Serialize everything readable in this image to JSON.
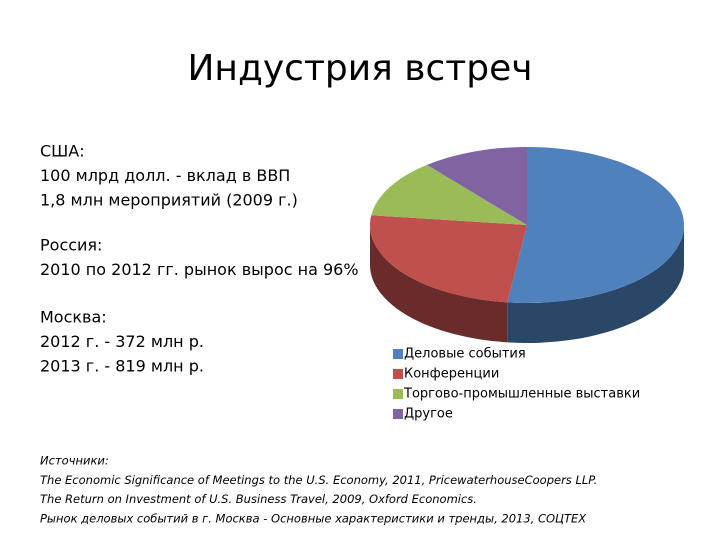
{
  "title": "Индустрия встреч",
  "blocks": [
    [
      "США:",
      "100 млрд долл. - вклад в ВВП",
      "1,8 млн мероприятий (2009 г.)"
    ],
    [
      "Россия:",
      "2010 по 2012 гг. рынок вырос на 96%"
    ],
    [
      "Москва:",
      "2012 г.  - 372 млн р.",
      "2013 г. -  819 млн р."
    ]
  ],
  "chart_data": {
    "type": "pie",
    "categories": [
      "Деловые события",
      "Конференции",
      "Торгово-промышленные выставки",
      "Другое"
    ],
    "values": [
      52,
      25,
      12,
      11
    ],
    "colors": [
      "#4f81bd",
      "#c0504d",
      "#9bbb59",
      "#8064a2"
    ]
  },
  "sources": [
    "Источники:",
    "The Economic Significance of Meetings to the U.S. Economy, 2011, PricewaterhouseCoopers LLP.",
    "The Return on Investment of U.S. Business Travel, 2009, Oxford Economics.",
    "Рынок деловых событий в г. Москва - Основные характеристики и тренды, 2013, СОЦТЕХ"
  ]
}
